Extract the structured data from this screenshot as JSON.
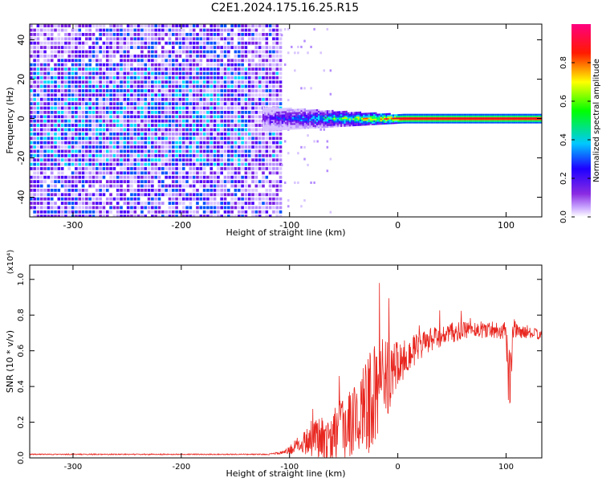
{
  "figure": {
    "title": "C2E1.2024.175.16.25.R15"
  },
  "chart_data": [
    {
      "type": "heatmap",
      "title": "C2E1.2024.175.16.25.R15",
      "xlabel": "Height of straight line (km)",
      "ylabel": "Frequency (Hz)",
      "xlim": [
        -340,
        133
      ],
      "ylim": [
        -50,
        48
      ],
      "xticks": [
        -300,
        -200,
        -100,
        0,
        100
      ],
      "yticks": [
        -40,
        -20,
        0,
        20,
        40
      ],
      "colorbar": {
        "label": "Normalized spectral amplitude",
        "range": [
          0.0,
          1.0
        ],
        "ticks": [
          0.0,
          0.2,
          0.4,
          0.6,
          0.8
        ],
        "colormap": [
          "#ffffff",
          "#8a2be2",
          "#1e00ff",
          "#00e5ff",
          "#00ff00",
          "#ffff00",
          "#ff0000",
          "#ff0080"
        ]
      },
      "description_regions": [
        {
          "x_range": [
            -340,
            -120
          ],
          "amplitude": "low, broadband across all frequencies"
        },
        {
          "x_range": [
            -120,
            -10
          ],
          "amplitude": "rising, concentrated near 0 Hz"
        },
        {
          "x_range": [
            -10,
            133
          ],
          "amplitude": "high (~1.0), concentrated at 0 Hz"
        }
      ]
    },
    {
      "type": "line",
      "xlabel": "Height of straight line (km)",
      "ylabel": "SNR (10 * v/v)",
      "yscale_label": "(x10⁴)",
      "xlim": [
        -340,
        133
      ],
      "ylim": [
        0.0,
        1.08
      ],
      "xticks": [
        -300,
        -200,
        -100,
        0,
        100
      ],
      "yticks": [
        0.0,
        0.2,
        0.4,
        0.6,
        0.8,
        1.0
      ],
      "series": [
        {
          "color": "#e8261f",
          "x": [
            -340,
            -300,
            -250,
            -200,
            -150,
            -120,
            -105,
            -95,
            -85,
            -75,
            -65,
            -55,
            -45,
            -35,
            -25,
            -15,
            -5,
            0,
            10,
            20,
            30,
            40,
            50,
            60,
            70,
            80,
            90,
            100,
            103,
            106,
            110,
            120,
            133
          ],
          "y": [
            0.02,
            0.02,
            0.02,
            0.02,
            0.02,
            0.02,
            0.03,
            0.06,
            0.1,
            0.12,
            0.12,
            0.14,
            0.18,
            0.25,
            0.32,
            0.42,
            0.48,
            0.52,
            0.58,
            0.62,
            0.66,
            0.68,
            0.7,
            0.71,
            0.72,
            0.72,
            0.72,
            0.71,
            0.35,
            0.72,
            0.71,
            0.7,
            0.69
          ],
          "noise_amplitude": [
            0.003,
            0.003,
            0.003,
            0.003,
            0.003,
            0.003,
            0.01,
            0.04,
            0.08,
            0.12,
            0.15,
            0.17,
            0.2,
            0.25,
            0.3,
            0.25,
            0.18,
            0.15,
            0.1,
            0.08,
            0.07,
            0.06,
            0.06,
            0.05,
            0.05,
            0.05,
            0.05,
            0.05,
            0.3,
            0.08,
            0.04,
            0.03,
            0.03
          ]
        }
      ]
    }
  ]
}
